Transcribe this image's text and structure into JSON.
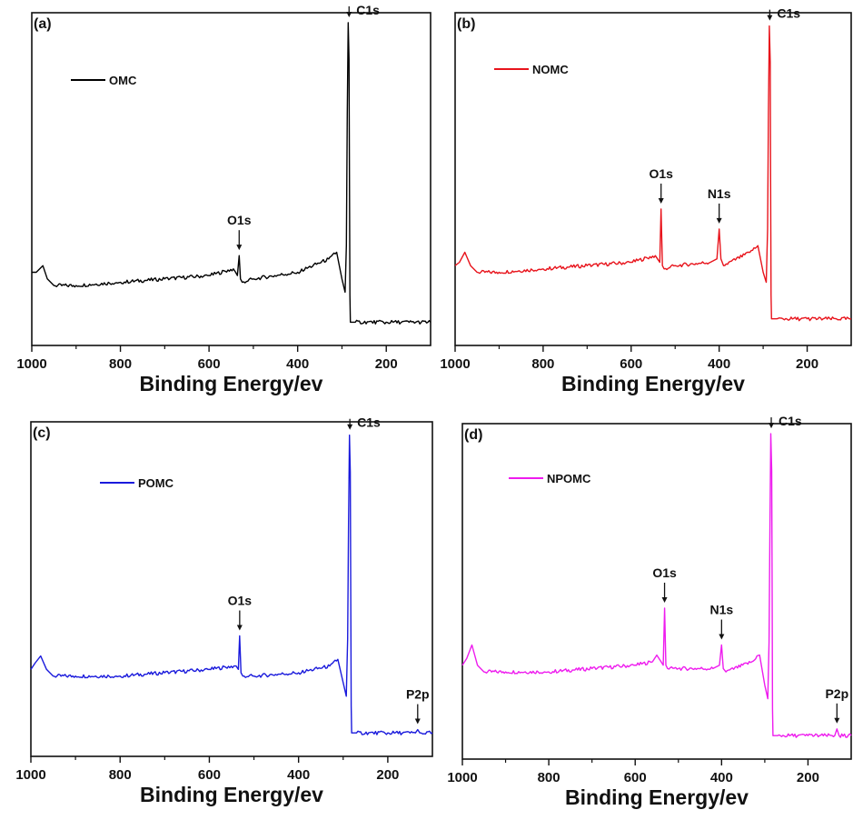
{
  "figure": {
    "xlabel": "Binding Energy/ev"
  },
  "chart_data": [
    {
      "type": "line",
      "panel_label": "(a)",
      "legend": "OMC",
      "color": "#000000",
      "xlabel": "Binding Energy/ev",
      "x_reversed": true,
      "xlim": [
        1000,
        100
      ],
      "xticks": [
        1000,
        800,
        600,
        400,
        200
      ],
      "y_axis_values_shown": false,
      "ylim": [
        0,
        100
      ],
      "peaks": [
        {
          "label": "O1s",
          "x": 532,
          "y": 27
        },
        {
          "label": "C1s",
          "x": 284,
          "y": 97
        }
      ],
      "series": [
        {
          "name": "OMC",
          "color": "#000000",
          "x": [
            1000,
            990,
            975,
            965,
            950,
            900,
            800,
            700,
            600,
            545,
            540,
            536,
            532,
            529,
            525,
            500,
            400,
            330,
            312,
            300,
            293,
            290,
            288,
            286,
            284,
            283,
            282,
            281,
            278,
            270,
            200,
            100
          ],
          "y": [
            22,
            22,
            24,
            20,
            18,
            18,
            19,
            20,
            21,
            23,
            22,
            21,
            27,
            20,
            19,
            20,
            22,
            26,
            28,
            20,
            16,
            30,
            70,
            97,
            86,
            50,
            15,
            7,
            7,
            7,
            7,
            7
          ]
        }
      ]
    },
    {
      "type": "line",
      "panel_label": "(b)",
      "legend": "NOMC",
      "color": "#e8141c",
      "xlabel": "Binding Energy/ev",
      "x_reversed": true,
      "xlim": [
        1000,
        100
      ],
      "xticks": [
        1000,
        800,
        600,
        400,
        200
      ],
      "y_axis_values_shown": false,
      "ylim": [
        0,
        100
      ],
      "peaks": [
        {
          "label": "O1s",
          "x": 532,
          "y": 41
        },
        {
          "label": "N1s",
          "x": 400,
          "y": 35
        },
        {
          "label": "C1s",
          "x": 285,
          "y": 96
        }
      ],
      "series": [
        {
          "name": "NOMC",
          "color": "#e8141c",
          "x": [
            1000,
            990,
            978,
            965,
            950,
            900,
            800,
            700,
            600,
            545,
            540,
            535,
            532,
            529,
            525,
            500,
            420,
            405,
            400,
            396,
            390,
            330,
            312,
            300,
            293,
            290,
            288,
            286,
            284,
            283,
            282,
            281,
            278,
            270,
            200,
            100
          ],
          "y": [
            24,
            25,
            28,
            24,
            22,
            22,
            23,
            24,
            25,
            27,
            26,
            25,
            41,
            24,
            23,
            24,
            25,
            26,
            35,
            26,
            24,
            28,
            30,
            22,
            19,
            35,
            70,
            96,
            85,
            50,
            15,
            8,
            8,
            8,
            8,
            8
          ]
        }
      ]
    },
    {
      "type": "line",
      "panel_label": "(c)",
      "legend": "POMC",
      "color": "#1a1adc",
      "xlabel": "Binding Energy/ev",
      "x_reversed": true,
      "xlim": [
        1000,
        100
      ],
      "xticks": [
        1000,
        800,
        600,
        400,
        200
      ],
      "y_axis_values_shown": false,
      "ylim": [
        0,
        100
      ],
      "peaks": [
        {
          "label": "O1s",
          "x": 532,
          "y": 36
        },
        {
          "label": "C1s",
          "x": 285,
          "y": 96
        },
        {
          "label": "P2p",
          "x": 133,
          "y": 8
        }
      ],
      "series": [
        {
          "name": "POMC",
          "color": "#1a1adc",
          "x": [
            1000,
            990,
            978,
            965,
            950,
            900,
            800,
            700,
            600,
            545,
            540,
            535,
            532,
            529,
            525,
            500,
            400,
            330,
            312,
            300,
            293,
            290,
            288,
            286,
            284,
            283,
            282,
            281,
            278,
            270,
            200,
            138,
            133,
            128,
            100
          ],
          "y": [
            26,
            28,
            30,
            26,
            24,
            24,
            24,
            25,
            26,
            27,
            27,
            26,
            36,
            25,
            24,
            24,
            25,
            27,
            29,
            22,
            18,
            35,
            70,
            96,
            85,
            50,
            15,
            7,
            7,
            7,
            7,
            7,
            8,
            7,
            7
          ]
        }
      ]
    },
    {
      "type": "line",
      "panel_label": "(d)",
      "legend": "NPOMC",
      "color": "#ee1cee",
      "xlabel": "Binding Energy/ev",
      "x_reversed": true,
      "xlim": [
        1000,
        100
      ],
      "xticks": [
        1000,
        800,
        600,
        400,
        200
      ],
      "y_axis_values_shown": false,
      "ylim": [
        0,
        100
      ],
      "peaks": [
        {
          "label": "O1s",
          "x": 532,
          "y": 45
        },
        {
          "label": "N1s",
          "x": 400,
          "y": 34
        },
        {
          "label": "C1s",
          "x": 285,
          "y": 97
        },
        {
          "label": "P2p",
          "x": 133,
          "y": 9
        }
      ],
      "series": [
        {
          "name": "NPOMC",
          "color": "#ee1cee",
          "x": [
            1000,
            990,
            978,
            965,
            950,
            900,
            800,
            700,
            600,
            560,
            550,
            540,
            535,
            532,
            529,
            525,
            500,
            420,
            405,
            400,
            396,
            390,
            330,
            312,
            300,
            293,
            290,
            288,
            286,
            284,
            283,
            282,
            281,
            278,
            270,
            200,
            138,
            133,
            128,
            100
          ],
          "y": [
            28,
            30,
            34,
            28,
            26,
            26,
            26,
            27,
            28,
            29,
            31,
            29,
            28,
            45,
            28,
            27,
            27,
            27,
            28,
            34,
            27,
            26,
            29,
            31,
            22,
            18,
            35,
            70,
            97,
            86,
            50,
            15,
            7,
            7,
            7,
            7,
            7,
            9,
            7,
            7
          ]
        }
      ]
    }
  ]
}
